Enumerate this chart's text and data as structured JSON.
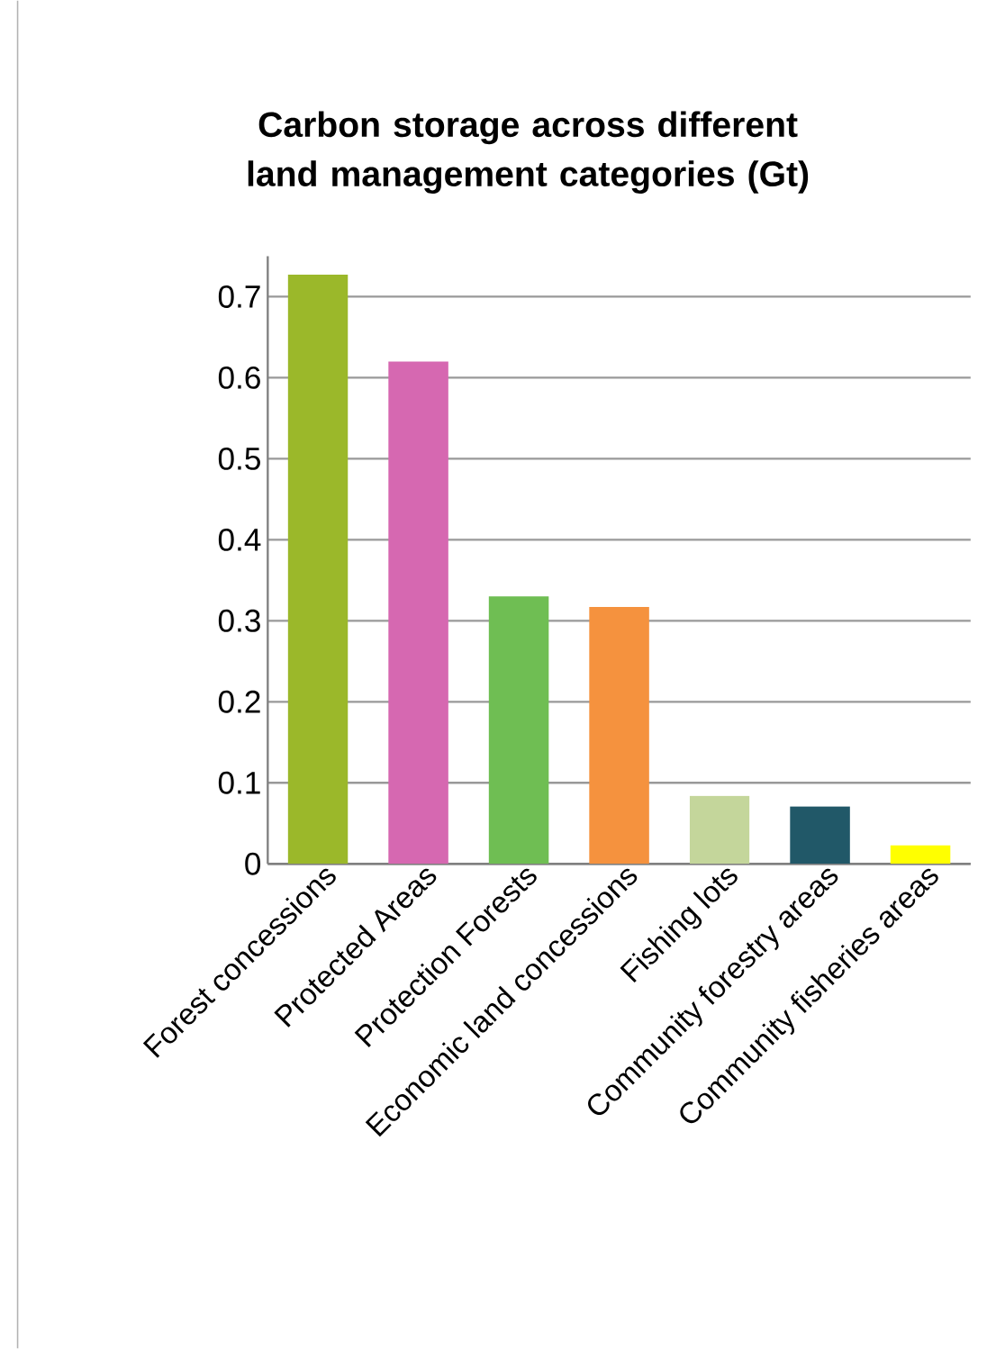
{
  "chart_data": {
    "type": "bar",
    "title": "Carbon storage across different land management categories (Gt)",
    "categories": [
      "Forest concessions",
      "Protected Areas",
      "Protection Forests",
      "Economic land concessions",
      "Fishing lots",
      "Community forestry areas",
      "Community fisheries areas"
    ],
    "values": [
      0.727,
      0.62,
      0.33,
      0.317,
      0.084,
      0.071,
      0.023
    ],
    "colors": [
      "#9bb82a",
      "#d668b1",
      "#6fbe53",
      "#f5923e",
      "#c4d69b",
      "#215868",
      "#ffff00"
    ],
    "ylim": [
      0,
      0.75
    ],
    "yticks": [
      0,
      0.1,
      0.2,
      0.3,
      0.4,
      0.5,
      0.6,
      0.7
    ],
    "grid": "y"
  }
}
